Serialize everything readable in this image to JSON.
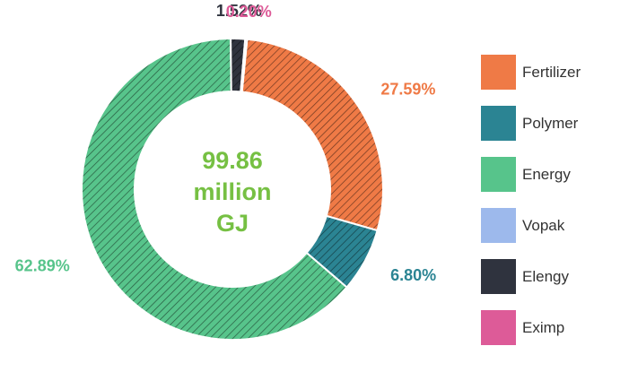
{
  "chart_data": {
    "type": "donut",
    "center_label": [
      "99.86",
      "million",
      "GJ"
    ],
    "center_color": "#76c043",
    "series": [
      {
        "name": "Fertilizer",
        "value": 27.59,
        "label": "27.59%",
        "color": "#ef7a46",
        "hatched": true
      },
      {
        "name": "Polymer",
        "value": 6.8,
        "label": "6.80%",
        "color": "#2b8493",
        "hatched": true
      },
      {
        "name": "Energy",
        "value": 62.89,
        "label": "62.89%",
        "color": "#57c48b",
        "hatched": true
      },
      {
        "name": "Vopak",
        "value": 0,
        "label": "",
        "color": "#9db9ec",
        "hatched": false
      },
      {
        "name": "Elengy",
        "value": 1.52,
        "label": "1.52%",
        "color": "#2f333e",
        "hatched": true
      },
      {
        "name": "Eximp",
        "value": 0.2,
        "label": "0.20%",
        "color": "#dd5b98",
        "hatched": true
      }
    ],
    "legend_position": "right"
  }
}
